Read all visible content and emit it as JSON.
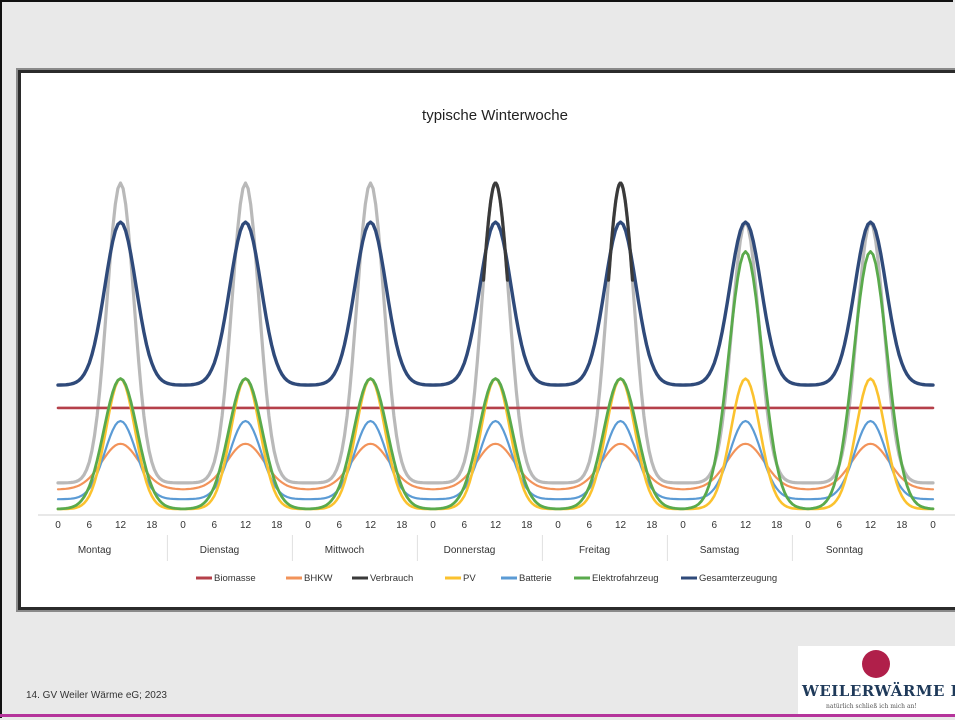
{
  "slide": {
    "footer": "14. GV Weiler Wärme eG; 2023",
    "logo_text": "WEILERWÄRME EG",
    "logo_sub": "natürlich schließ ich mich an!"
  },
  "chart_data": {
    "type": "line",
    "title": "typische Winterwoche",
    "xlabel": "",
    "ylabel": "",
    "x_ticks": [
      "0",
      "6",
      "12",
      "18",
      "0",
      "6",
      "12",
      "18",
      "0",
      "6",
      "12",
      "18",
      "0",
      "6",
      "12",
      "18",
      "0",
      "6",
      "12",
      "18",
      "0",
      "6",
      "12",
      "18",
      "0",
      "6",
      "12",
      "18",
      "0"
    ],
    "days": [
      "Montag",
      "Dienstag",
      "Mittwoch",
      "Donnerstag",
      "Freitag",
      "Samstag",
      "Sonntag"
    ],
    "grid": false,
    "legend_position": "bottom",
    "colors": {
      "Biomasse": "#b5404a",
      "BHKW": "#f2935a",
      "Verbrauch": "#3a3a3a",
      "Verbrauch_typical": "#b9b9b9",
      "PV": "#fbc22e",
      "Batterie": "#5b9bd5",
      "Elektrofahrzeug": "#5aaa4c",
      "Gesamterzeugung": "#2f4a7a"
    },
    "legend": [
      "Biomasse",
      "BHKW",
      "Verbrauch",
      "PV",
      "Batterie",
      "Elektrofahrzeug",
      "Gesamterzeugung"
    ],
    "ylim": [
      0,
      100
    ],
    "profiles": {
      "Biomasse": {
        "base": 31,
        "peak": 31
      },
      "BHKW": {
        "base": 6,
        "peak": 20
      },
      "Verbrauch": {
        "base": 8,
        "peak": 100,
        "weekday_base": [
          8,
          8,
          8,
          8,
          8,
          10,
          10
        ]
      },
      "PV": {
        "base": 0,
        "peak": 40
      },
      "Batterie": {
        "base": 3,
        "peak": 27
      },
      "Elektrofahrzeug": {
        "base": 0,
        "peak": 40,
        "weekend_peak": 79
      },
      "Gesamterzeugung": {
        "base": 38,
        "peak": 88
      }
    },
    "verbrauch_peaks": [
      100,
      100,
      100,
      100,
      100,
      88,
      88
    ],
    "verbrauch_dark_days": [
      3,
      4
    ]
  }
}
